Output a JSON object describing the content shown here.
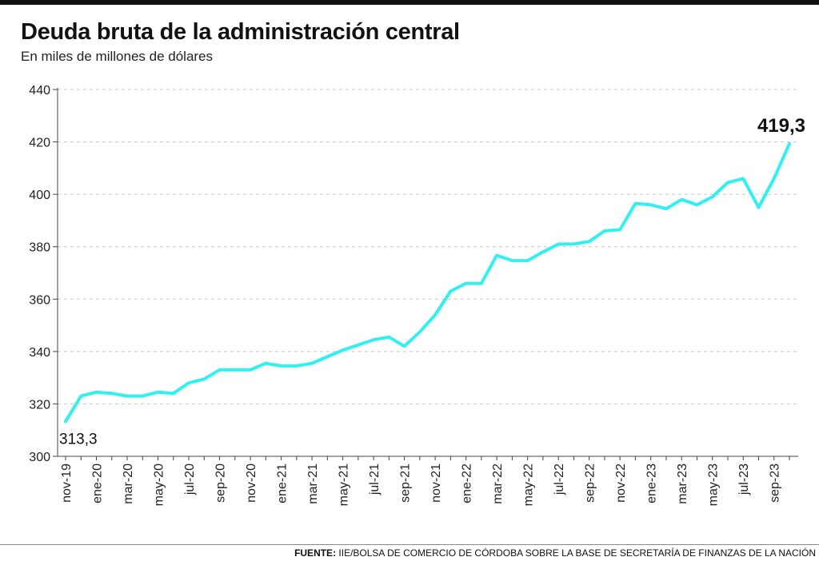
{
  "header": {
    "title": "Deuda bruta de la administración central",
    "subtitle": "En miles de millones de dólares"
  },
  "footer": {
    "source_label": "FUENTE:",
    "source_text": " IIE/BOLSA DE COMERCIO DE CÓRDOBA SOBRE LA BASE DE SECRETARÍA DE FINANZAS DE LA NACIÓN"
  },
  "colors": {
    "line": "#33f0f0",
    "grid": "#c8c8c8",
    "axis": "#444444"
  },
  "chart_data": {
    "type": "line",
    "title": "Deuda bruta de la administración central",
    "subtitle": "En miles de millones de dólares",
    "xlabel": "",
    "ylabel": "",
    "ylim": [
      300,
      440
    ],
    "yticks": [
      300,
      320,
      340,
      360,
      380,
      400,
      420,
      440
    ],
    "grid": "horizontal-dashed",
    "x": [
      "nov-19",
      "dic-19",
      "ene-20",
      "feb-20",
      "mar-20",
      "abr-20",
      "may-20",
      "jun-20",
      "jul-20",
      "ago-20",
      "sep-20",
      "oct-20",
      "nov-20",
      "dic-20",
      "ene-21",
      "feb-21",
      "mar-21",
      "abr-21",
      "may-21",
      "jun-21",
      "jul-21",
      "ago-21",
      "sep-21",
      "oct-21",
      "nov-21",
      "dic-21",
      "ene-22",
      "feb-22",
      "mar-22",
      "abr-22",
      "may-22",
      "jun-22",
      "jul-22",
      "ago-22",
      "sep-22",
      "oct-22",
      "nov-22",
      "dic-22",
      "ene-23",
      "feb-23",
      "mar-23",
      "abr-23",
      "may-23",
      "jun-23",
      "jul-23",
      "ago-23",
      "sep-23",
      "oct-23"
    ],
    "xtick_labels": [
      "nov-19",
      "ene-20",
      "mar-20",
      "may-20",
      "jul-20",
      "sep-20",
      "nov-20",
      "ene-21",
      "mar-21",
      "may-21",
      "jul-21",
      "sep-21",
      "nov-21",
      "ene-22",
      "mar-22",
      "may-22",
      "jul-22",
      "sep-22",
      "nov-22",
      "ene-23",
      "mar-23",
      "may-23",
      "jul-23",
      "sep-23"
    ],
    "series": [
      {
        "values": [
          313.3,
          323,
          324.5,
          324,
          323,
          323,
          324.5,
          324,
          328,
          329.5,
          333,
          333,
          333,
          335.5,
          334.5,
          334.5,
          335.5,
          338,
          340.5,
          342.5,
          344.5,
          345.5,
          342,
          347.5,
          354,
          363,
          366,
          366,
          376.7,
          374.7,
          374.7,
          378,
          381,
          381,
          382,
          386,
          386.5,
          396.5,
          396,
          394.5,
          398,
          396,
          399,
          404.5,
          406,
          395,
          406,
          419.3
        ]
      }
    ],
    "annotations": [
      {
        "label": "313,3",
        "at": "nov-19",
        "value": 313.3
      },
      {
        "label": "419,3",
        "at": "oct-23",
        "value": 419.3
      }
    ]
  }
}
